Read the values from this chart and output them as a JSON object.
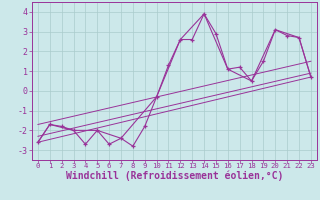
{
  "background_color": "#cce8ea",
  "grid_color": "#aacccc",
  "line_color": "#993399",
  "xlim": [
    -0.5,
    23.5
  ],
  "ylim": [
    -3.5,
    4.5
  ],
  "xlabel": "Windchill (Refroidissement éolien,°C)",
  "xtick_values": [
    0,
    1,
    2,
    3,
    4,
    5,
    6,
    7,
    8,
    9,
    10,
    11,
    12,
    13,
    14,
    15,
    16,
    17,
    18,
    19,
    20,
    21,
    22,
    23
  ],
  "ytick_values": [
    -3,
    -2,
    -1,
    0,
    1,
    2,
    3,
    4
  ],
  "series_main": [
    [
      0,
      -2.6
    ],
    [
      1,
      -1.7
    ],
    [
      2,
      -1.8
    ],
    [
      3,
      -2.0
    ],
    [
      4,
      -2.7
    ],
    [
      5,
      -2.0
    ],
    [
      6,
      -2.7
    ],
    [
      7,
      -2.4
    ],
    [
      8,
      -2.8
    ],
    [
      9,
      -1.8
    ],
    [
      10,
      -0.3
    ],
    [
      11,
      1.3
    ],
    [
      12,
      2.6
    ],
    [
      13,
      2.6
    ],
    [
      14,
      3.9
    ],
    [
      15,
      2.9
    ],
    [
      16,
      1.1
    ],
    [
      17,
      1.2
    ],
    [
      18,
      0.5
    ],
    [
      19,
      1.5
    ],
    [
      20,
      3.1
    ],
    [
      21,
      2.8
    ],
    [
      22,
      2.7
    ],
    [
      23,
      0.7
    ]
  ],
  "series_envelope": [
    [
      0,
      -2.6
    ],
    [
      1,
      -1.7
    ],
    [
      3,
      -2.0
    ],
    [
      5,
      -2.0
    ],
    [
      7,
      -2.4
    ],
    [
      10,
      -0.3
    ],
    [
      12,
      2.6
    ],
    [
      14,
      3.9
    ],
    [
      16,
      1.1
    ],
    [
      18,
      0.5
    ],
    [
      20,
      3.1
    ],
    [
      22,
      2.7
    ],
    [
      23,
      0.7
    ]
  ],
  "line_trend1": [
    [
      0,
      -2.6
    ],
    [
      23,
      0.7
    ]
  ],
  "line_trend2": [
    [
      0,
      -1.7
    ],
    [
      23,
      1.5
    ]
  ],
  "line_trend3": [
    [
      0,
      -2.3
    ],
    [
      23,
      0.9
    ]
  ]
}
